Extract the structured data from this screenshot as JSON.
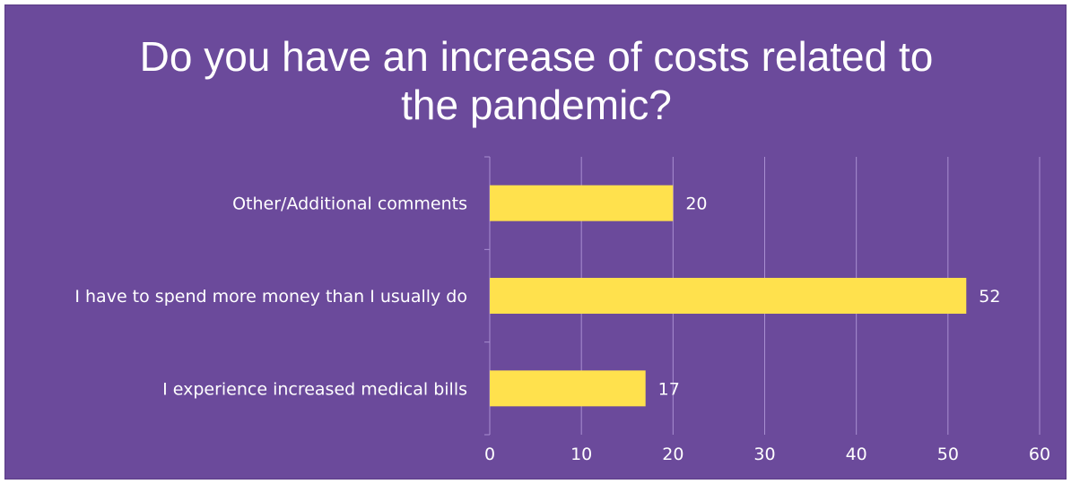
{
  "colors": {
    "background": "#6b4a9b",
    "bar": "#ffe14d",
    "grid": "#a88fd1",
    "text": "#ffffff"
  },
  "chart_data": {
    "type": "bar",
    "orientation": "horizontal",
    "title_lines": [
      "Do you have an increase of costs related to",
      "the pandemic?"
    ],
    "categories": [
      "Other/Additional comments",
      "I have to spend more money than I usually do",
      "I experience increased medical bills"
    ],
    "values": [
      20,
      52,
      17
    ],
    "data_labels": [
      "20",
      "52",
      "17"
    ],
    "xlim": [
      0,
      60
    ],
    "ticks": [
      0,
      10,
      20,
      30,
      40,
      50,
      60
    ],
    "tick_labels": [
      "0",
      "10",
      "20",
      "30",
      "40",
      "50",
      "60"
    ],
    "grid": true,
    "legend": "none",
    "xlabel": "",
    "ylabel": ""
  }
}
